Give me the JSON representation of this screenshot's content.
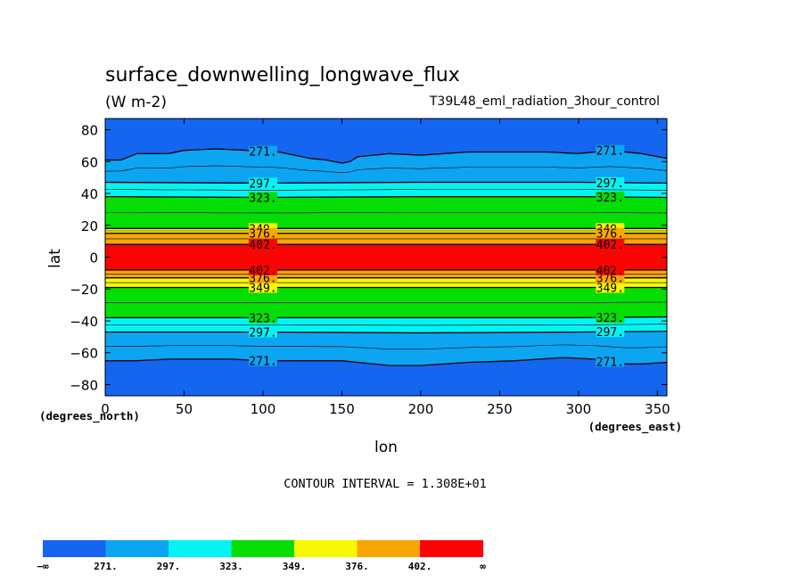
{
  "chart_data": {
    "type": "heatmap",
    "title": "surface_downwelling_longwave_flux",
    "units": "(W m-2)",
    "experiment": "T39L48_eml_radiation_3hour_control",
    "xlabel": "lon",
    "ylabel": "lat",
    "x_units_label": "(degrees_east)",
    "y_units_label": "(degrees_north)",
    "xlim": [
      0,
      356
    ],
    "ylim": [
      -87,
      87
    ],
    "xticks": [
      0,
      50,
      100,
      150,
      200,
      250,
      300,
      350
    ],
    "xtick_labels": [
      "0",
      "50",
      "100",
      "150",
      "200",
      "250",
      "300",
      "350"
    ],
    "yticks": [
      -80,
      -60,
      -40,
      -20,
      0,
      20,
      40,
      60,
      80
    ],
    "ytick_labels": [
      "−80",
      "−60",
      "−40",
      "−20",
      "0",
      "20",
      "40",
      "60",
      "80"
    ],
    "contour_interval_text": "CONTOUR INTERVAL = 1.308E+01",
    "levels": [
      271,
      297,
      323,
      349,
      376,
      402
    ],
    "level_labels": [
      "271.",
      "297.",
      "323.",
      "349.",
      "376.",
      "402."
    ],
    "colorbar_end_labels": [
      "−∞",
      "∞"
    ],
    "colors": [
      "#1466f0",
      "#0ca5f2",
      "#04f4f4",
      "#04de04",
      "#f8f804",
      "#f8a604",
      "#fa0404"
    ],
    "line_label_lons": [
      100,
      320
    ],
    "boundaries_north": {
      "271": [
        [
          0,
          61
        ],
        [
          10,
          61
        ],
        [
          20,
          65
        ],
        [
          40,
          65
        ],
        [
          50,
          67
        ],
        [
          70,
          68
        ],
        [
          90,
          67
        ],
        [
          110,
          66
        ],
        [
          130,
          62
        ],
        [
          140,
          61
        ],
        [
          150,
          59
        ],
        [
          155,
          60
        ],
        [
          160,
          63
        ],
        [
          180,
          65
        ],
        [
          200,
          64
        ],
        [
          230,
          66
        ],
        [
          260,
          66
        ],
        [
          280,
          66
        ],
        [
          300,
          65
        ],
        [
          320,
          67
        ],
        [
          340,
          65
        ],
        [
          356,
          62
        ]
      ],
      "297": [
        [
          0,
          47
        ],
        [
          100,
          46.5
        ],
        [
          200,
          47
        ],
        [
          300,
          47
        ],
        [
          356,
          46.5
        ]
      ],
      "323": [
        [
          0,
          38
        ],
        [
          100,
          37.5
        ],
        [
          200,
          38
        ],
        [
          300,
          38
        ],
        [
          356,
          37.5
        ]
      ],
      "349": [
        [
          0,
          18
        ],
        [
          120,
          18
        ],
        [
          240,
          18
        ],
        [
          356,
          18
        ]
      ],
      "376": [
        [
          0,
          15
        ],
        [
          120,
          15
        ],
        [
          240,
          15
        ],
        [
          356,
          15
        ]
      ],
      "402": [
        [
          0,
          8
        ],
        [
          120,
          8
        ],
        [
          240,
          8
        ],
        [
          356,
          8
        ]
      ]
    },
    "boundaries_south": {
      "402": [
        [
          0,
          -8
        ],
        [
          120,
          -8
        ],
        [
          240,
          -8
        ],
        [
          356,
          -8
        ]
      ],
      "376": [
        [
          0,
          -13
        ],
        [
          120,
          -13
        ],
        [
          240,
          -13
        ],
        [
          356,
          -13
        ]
      ],
      "349": [
        [
          0,
          -19
        ],
        [
          120,
          -19
        ],
        [
          240,
          -19
        ],
        [
          356,
          -19
        ]
      ],
      "323": [
        [
          0,
          -38
        ],
        [
          100,
          -38
        ],
        [
          200,
          -38
        ],
        [
          300,
          -38
        ],
        [
          356,
          -37.5
        ]
      ],
      "297": [
        [
          0,
          -47
        ],
        [
          100,
          -47
        ],
        [
          200,
          -47.5
        ],
        [
          300,
          -47
        ],
        [
          356,
          -46.5
        ]
      ],
      "271": [
        [
          0,
          -65
        ],
        [
          20,
          -65
        ],
        [
          40,
          -64
        ],
        [
          80,
          -64
        ],
        [
          100,
          -65
        ],
        [
          120,
          -65
        ],
        [
          150,
          -65
        ],
        [
          180,
          -68
        ],
        [
          200,
          -68
        ],
        [
          230,
          -66
        ],
        [
          260,
          -65
        ],
        [
          290,
          -63
        ],
        [
          310,
          -64
        ],
        [
          330,
          -67
        ],
        [
          340,
          -67
        ],
        [
          356,
          -66
        ]
      ]
    },
    "grid": false,
    "legend": "bottom"
  }
}
